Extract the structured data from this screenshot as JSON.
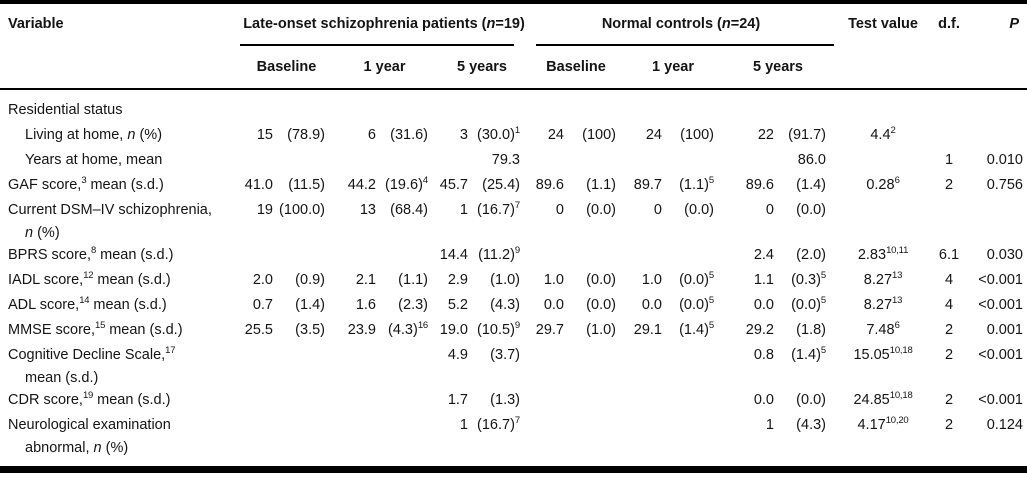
{
  "table": {
    "columns": {
      "variable_header": "Variable",
      "group1_header": "Late-onset schizophrenia patients (_n_=19)",
      "group2_header": "Normal controls (_n_=24)",
      "subheaders": [
        "Baseline",
        "1 year",
        "5 years",
        "Baseline",
        "1 year",
        "5 years"
      ],
      "test_header": "Test value",
      "df_header": "d.f.",
      "p_header": "P"
    },
    "rows": [
      {
        "label": "Residential status",
        "indent": 0,
        "cells": [
          "",
          "",
          "",
          "",
          "",
          ""
        ],
        "test": "",
        "df": "",
        "p": ""
      },
      {
        "label": "Living at home, _n_ (%)",
        "indent": 1,
        "cells": [
          "15 (78.9)",
          "6 (31.6)",
          "3 (30.0)^{1}",
          "24 (100)",
          "24 (100)",
          "22 (91.7)"
        ],
        "test": "4.4^{2}",
        "df": "",
        "p": ""
      },
      {
        "label": "Years at home, mean",
        "indent": 1,
        "cells": [
          "",
          "",
          "79.3",
          "",
          "",
          "86.0"
        ],
        "test": "",
        "df": "1",
        "p": "0.010"
      },
      {
        "label": "GAF score,^{3} mean (s.d.)",
        "indent": 0,
        "cells": [
          "41.0 (11.5)",
          "44.2 (19.6)^{4}",
          "45.7 (25.4)",
          "89.6 (1.1)",
          "89.7 (1.1)^{5}",
          "89.6 (1.4)"
        ],
        "test": "0.28^{6}",
        "df": "2",
        "p": "0.756"
      },
      {
        "label": "Current DSM–IV schizophrenia,",
        "label2": "_n_ (%)",
        "indent": 0,
        "cells": [
          "19 (100.0)",
          "13 (68.4)",
          "1 (16.7)^{7}",
          "0 (0.0)",
          "0 (0.0)",
          "0 (0.0)"
        ],
        "test": "",
        "df": "",
        "p": ""
      },
      {
        "label": "BPRS score,^{8} mean (s.d.)",
        "indent": 0,
        "cells": [
          "",
          "",
          "14.4 (11.2)^{9}",
          "",
          "",
          "2.4 (2.0)"
        ],
        "test": "2.83^{10,11}",
        "df": "6.1",
        "p": "0.030"
      },
      {
        "label": "IADL score,^{12} mean (s.d.)",
        "indent": 0,
        "cells": [
          "2.0 (0.9)",
          "2.1 (1.1)",
          "2.9 (1.0)",
          "1.0 (0.0)",
          "1.0 (0.0)^{5}",
          "1.1 (0.3)^{5}"
        ],
        "test": "8.27^{13}",
        "df": "4",
        "p": "<0.001"
      },
      {
        "label": "ADL score,^{14} mean (s.d.)",
        "indent": 0,
        "cells": [
          "0.7 (1.4)",
          "1.6 (2.3)",
          "5.2 (4.3)",
          "0.0 (0.0)",
          "0.0 (0.0)^{5}",
          "0.0 (0.0)^{5}"
        ],
        "test": "8.27^{13}",
        "df": "4",
        "p": "<0.001"
      },
      {
        "label": "MMSE score,^{15} mean (s.d.)",
        "indent": 0,
        "cells": [
          "25.5 (3.5)",
          "23.9 (4.3)^{16}",
          "19.0 (10.5)^{9}",
          "29.7 (1.0)",
          "29.1 (1.4)^{5}",
          "29.2 (1.8)"
        ],
        "test": "7.48^{6}",
        "df": "2",
        "p": "0.001"
      },
      {
        "label": "Cognitive Decline Scale,^{17}",
        "label2": "mean (s.d.)",
        "indent": 0,
        "cells": [
          "",
          "",
          "4.9 (3.7)",
          "",
          "",
          "0.8 (1.4)^{5}"
        ],
        "test": "15.05^{10,18}",
        "df": "2",
        "p": "<0.001"
      },
      {
        "label": "CDR score,^{19} mean (s.d.)",
        "indent": 0,
        "cells": [
          "",
          "",
          "1.7 (1.3)",
          "",
          "",
          "0.0 (0.0)"
        ],
        "test": "24.85^{10,18}",
        "df": "2",
        "p": "<0.001"
      },
      {
        "label": "Neurological examination",
        "label2": "abnormal, _n_ (%)",
        "indent": 0,
        "cells": [
          "",
          "",
          "1 (16.7)^{7}",
          "",
          "",
          "1 (4.3)"
        ],
        "test": "4.17^{10,20}",
        "df": "2",
        "p": "0.124"
      }
    ]
  },
  "colors": {
    "text": "#141414",
    "rule": "#000000",
    "background": "#ffffff"
  }
}
